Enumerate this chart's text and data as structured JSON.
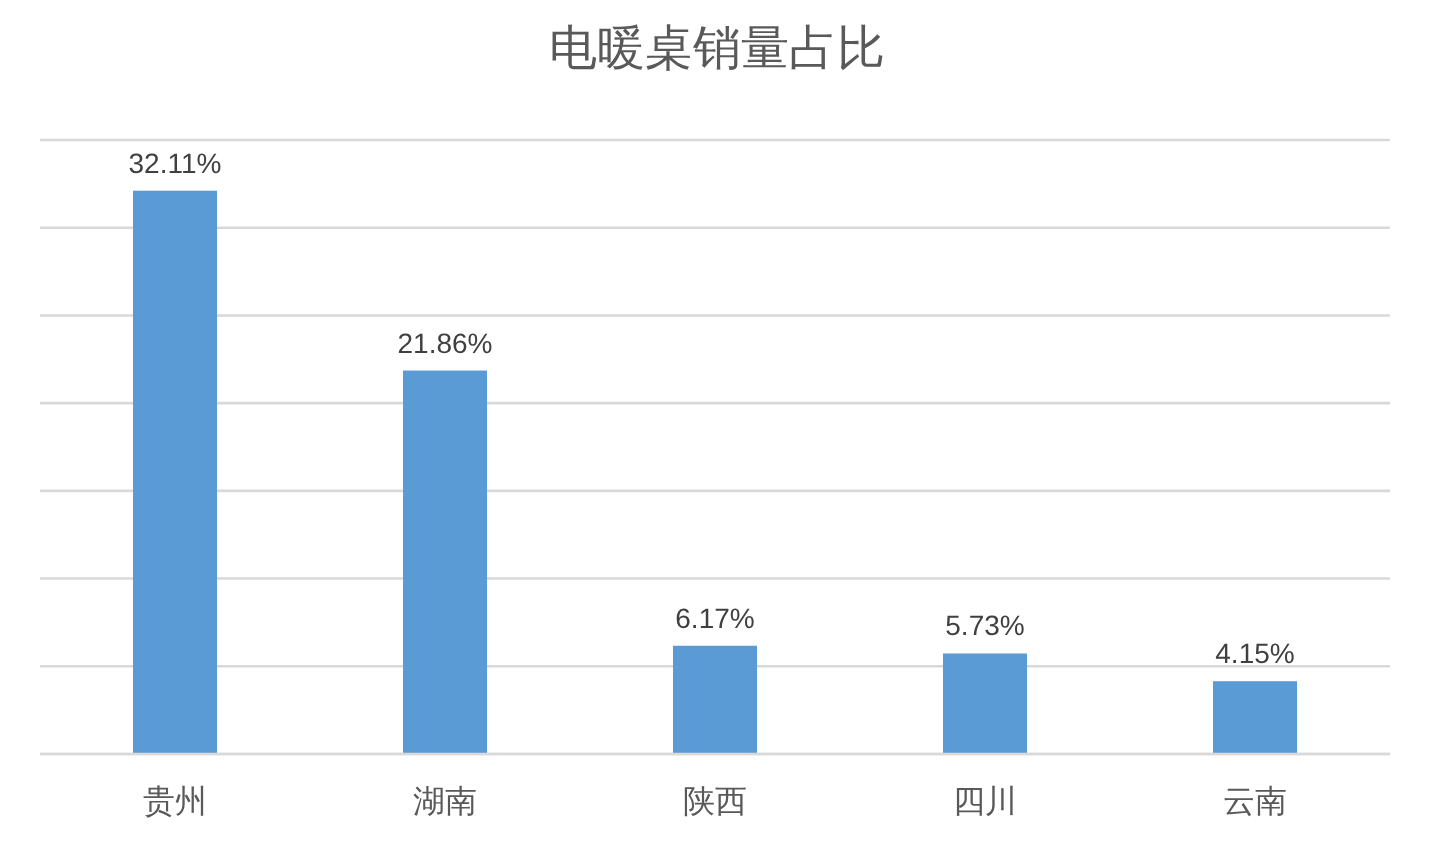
{
  "chart_data": {
    "type": "bar",
    "title": "电暖桌销量占比",
    "categories": [
      "贵州",
      "湖南",
      "陕西",
      "四川",
      "云南"
    ],
    "values": [
      32.11,
      21.86,
      6.17,
      5.73,
      4.15
    ],
    "value_labels": [
      "32.11%",
      "21.86%",
      "6.17%",
      "5.73%",
      "4.15%"
    ],
    "color": "#5b9bd5",
    "ylim": [
      0,
      35
    ],
    "yticks": [
      {
        "value": 0,
        "label": null
      },
      {
        "value": 5,
        "label": null
      },
      {
        "value": 10,
        "label": null
      },
      {
        "value": 15,
        "label": null
      },
      {
        "value": 20,
        "label": null
      },
      {
        "value": 25,
        "label": null
      },
      {
        "value": 30,
        "label": null
      },
      {
        "value": 35,
        "label": null
      }
    ],
    "grid": "y",
    "tick_labels": "x"
  }
}
